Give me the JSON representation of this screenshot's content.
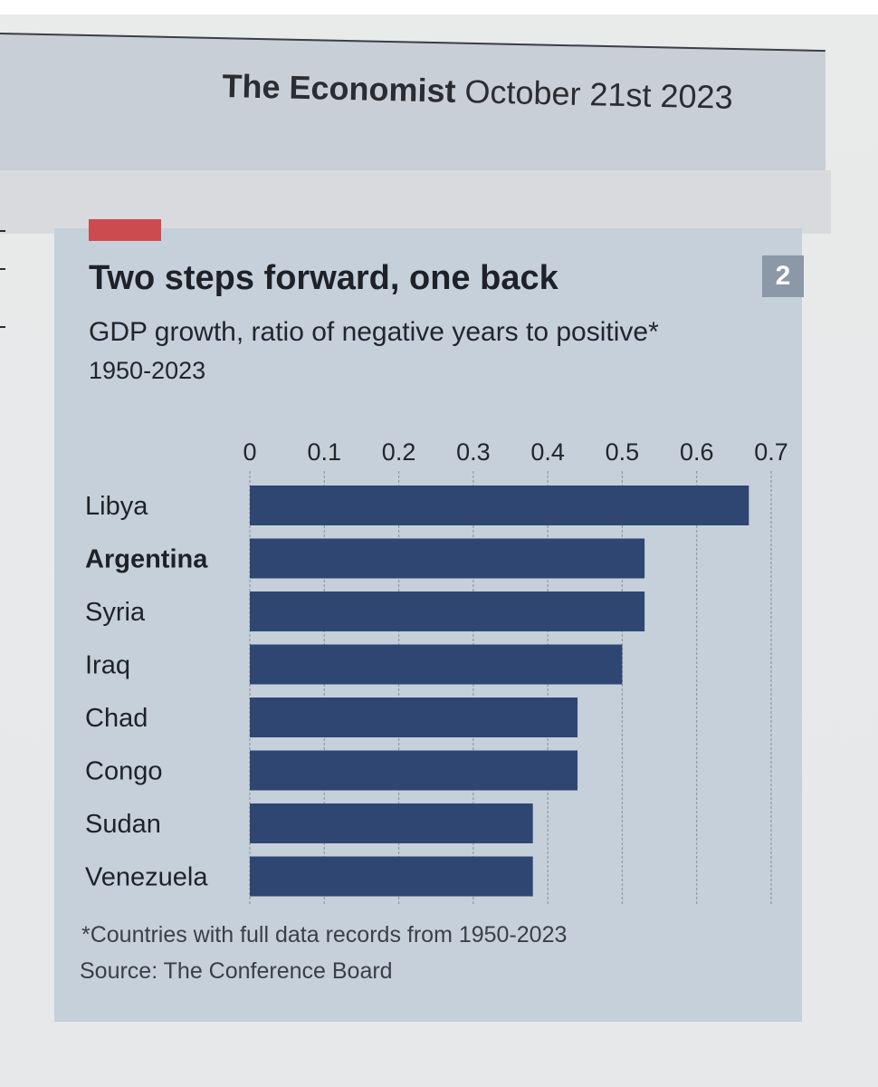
{
  "masthead": {
    "brand": "The Economist",
    "date": "October 21st 2023"
  },
  "chart_badge": "2",
  "colors": {
    "bar": "#2f4673",
    "panel": "#c6d0da",
    "accent_tag": "#cc4b4e"
  },
  "chart_data": {
    "type": "bar",
    "orientation": "horizontal",
    "title": "Two steps forward, one back",
    "subtitle": "GDP growth, ratio of negative years to positive*",
    "period": "1950-2023",
    "categories": [
      "Libya",
      "Argentina",
      "Syria",
      "Iraq",
      "Chad",
      "Congo",
      "Sudan",
      "Venezuela"
    ],
    "highlighted_category": "Argentina",
    "values": [
      0.67,
      0.53,
      0.53,
      0.5,
      0.44,
      0.44,
      0.38,
      0.38
    ],
    "xlim": [
      0,
      0.7
    ],
    "xticks": [
      "0",
      "0.1",
      "0.2",
      "0.3",
      "0.4",
      "0.5",
      "0.6",
      "0.7"
    ],
    "xaxis_position": "top",
    "grid": true,
    "footnote": "*Countries with full data records from 1950-2023",
    "source": "Source: The Conference Board"
  }
}
